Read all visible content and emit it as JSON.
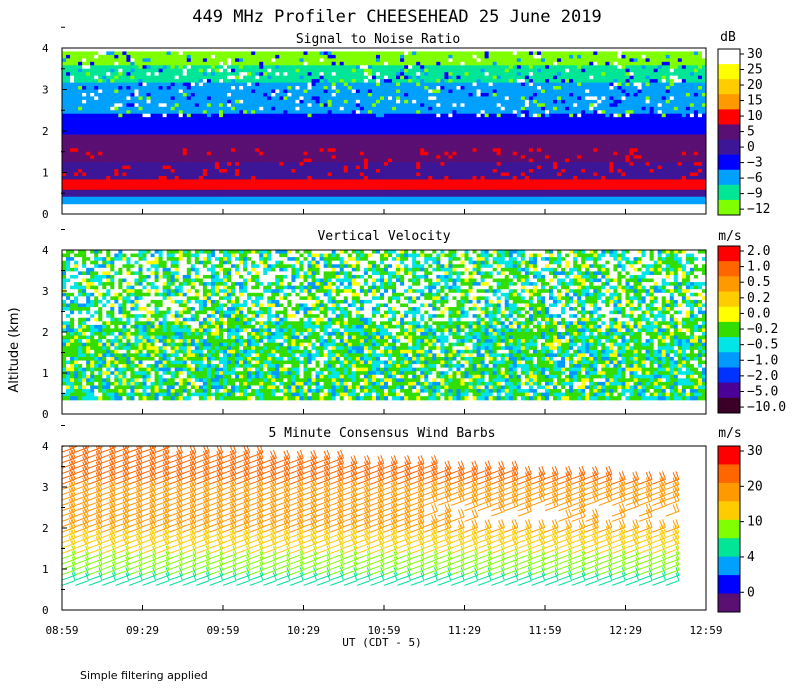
{
  "title": "449 MHz Profiler CHEESEHEAD 25 June 2019",
  "y_axis_label": "Altitude (km)",
  "x_axis_label": "UT  (CDT - 5)",
  "x_ticks": [
    "08:59",
    "09:29",
    "09:59",
    "10:29",
    "10:59",
    "11:29",
    "11:59",
    "12:29",
    "12:59"
  ],
  "footnote": "Simple filtering applied",
  "chart_data": [
    {
      "type": "heatmap",
      "title": "Signal to Noise Ratio",
      "xlim": [
        "08:59",
        "12:59"
      ],
      "ylim": [
        0,
        4
      ],
      "y_ticks": [
        "0",
        "1",
        "2",
        "3",
        "4"
      ],
      "colorbar": {
        "unit": "dB",
        "labels": [
          "30",
          "25",
          "20",
          "15",
          "10",
          "5",
          "0",
          "−3",
          "−6",
          "−9",
          "−12"
        ],
        "colors": [
          "#ffffff",
          "#ffff00",
          "#ffcc00",
          "#ff9900",
          "#ff0000",
          "#5a0f73",
          "#3c1696",
          "#0000ff",
          "#00a0ff",
          "#00e696",
          "#80ff00"
        ]
      },
      "bands": [
        {
          "alt_from": 0.3,
          "alt_to": 0.45,
          "category": "-6"
        },
        {
          "alt_from": 0.45,
          "alt_to": 0.6,
          "category": "0"
        },
        {
          "alt_from": 0.6,
          "alt_to": 0.9,
          "category": "10"
        },
        {
          "alt_from": 0.9,
          "alt_to": 1.3,
          "category": "0"
        },
        {
          "alt_from": 1.3,
          "alt_to": 2.0,
          "category": "5"
        },
        {
          "alt_from": 2.0,
          "alt_to": 2.5,
          "category": "-3"
        },
        {
          "alt_from": 2.5,
          "alt_to": 3.2,
          "category": "-6"
        },
        {
          "alt_from": 3.2,
          "alt_to": 3.6,
          "category": "-9"
        },
        {
          "alt_from": 3.6,
          "alt_to": 4.0,
          "category": "-12"
        }
      ]
    },
    {
      "type": "heatmap",
      "title": "Vertical Velocity",
      "xlim": [
        "08:59",
        "12:59"
      ],
      "ylim": [
        0,
        4
      ],
      "y_ticks": [
        "0",
        "1",
        "2",
        "3",
        "4"
      ],
      "colorbar": {
        "unit": "m/s",
        "labels": [
          "2.0",
          "1.0",
          "0.5",
          "0.2",
          "0.0",
          "−0.2",
          "−0.5",
          "−1.0",
          "−2.0",
          "−5.0",
          "−10.0"
        ],
        "colors": [
          "#ff0000",
          "#ff6600",
          "#ff9900",
          "#ffcc00",
          "#ffff00",
          "#33dd00",
          "#00e6e6",
          "#0099ff",
          "#0033ff",
          "#4b0096",
          "#3c0028"
        ]
      },
      "data_range_alt": [
        0.4,
        4.0
      ]
    },
    {
      "type": "scatter",
      "title": "5 Minute Consensus Wind Barbs",
      "xlim": [
        "08:59",
        "12:59"
      ],
      "ylim": [
        0,
        4
      ],
      "y_ticks": [
        "0",
        "1",
        "2",
        "3",
        "4"
      ],
      "colorbar": {
        "unit": "m/s",
        "labels": [
          "30",
          "20",
          "10",
          "4",
          "0"
        ],
        "colors": [
          "#ff0000",
          "#ff6600",
          "#ff9900",
          "#ffcc00",
          "#80ff00",
          "#00e696",
          "#00a0ff",
          "#0000ff",
          "#5a0f73"
        ]
      },
      "speed_profile": [
        {
          "alt": 0.6,
          "speed": 5
        },
        {
          "alt": 1.0,
          "speed": 10
        },
        {
          "alt": 1.5,
          "speed": 15
        },
        {
          "alt": 2.0,
          "speed": 18
        },
        {
          "alt": 3.0,
          "speed": 22
        },
        {
          "alt": 4.0,
          "speed": 25
        }
      ]
    }
  ]
}
